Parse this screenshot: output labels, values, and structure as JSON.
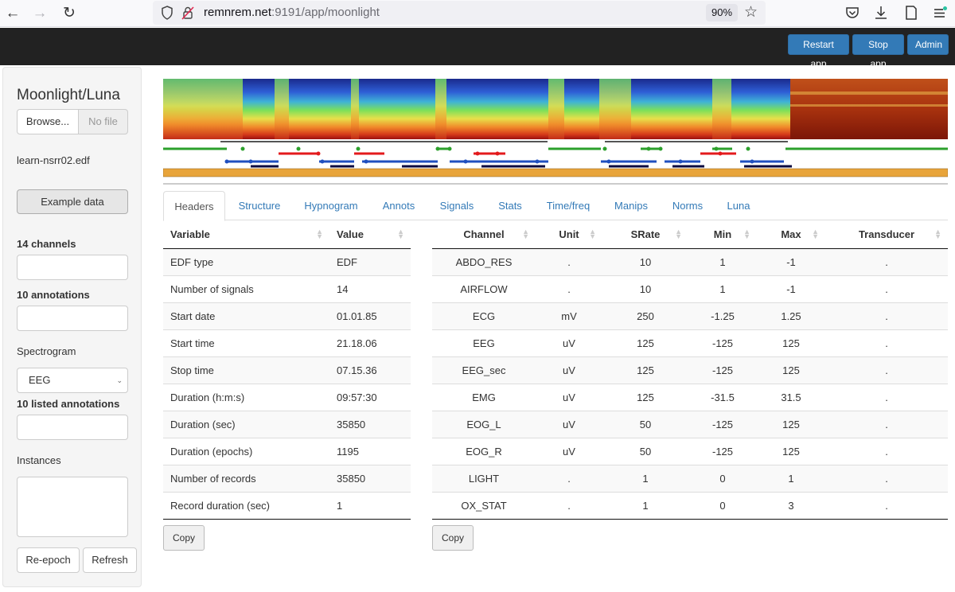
{
  "browser": {
    "url_host": "remnrem.net",
    "url_path": ":9191/app/moonlight",
    "zoom": "90%"
  },
  "navbar": {
    "restart_label": "Restart app",
    "stop_label": "Stop app",
    "admin_label": "Admin",
    "button_color": "#337ab7"
  },
  "sidebar": {
    "title": "Moonlight/Luna",
    "browse_label": "Browse...",
    "file_placeholder": "No file",
    "filename": "learn-nsrr02.edf",
    "example_label": "Example data",
    "channels_label": "14 channels",
    "annotations_label": "10 annotations",
    "spectrogram_label": "Spectrogram",
    "spectrogram_value": "EEG",
    "listed_annotations_label": "10 listed annotations",
    "instances_label": "Instances",
    "reepoch_label": "Re-epoch",
    "refresh_label": "Refresh"
  },
  "tabs": [
    "Headers",
    "Structure",
    "Hypnogram",
    "Annots",
    "Signals",
    "Stats",
    "Time/freq",
    "Manips",
    "Norms",
    "Luna"
  ],
  "active_tab": "Headers",
  "headers_table": {
    "columns": [
      "Variable",
      "Value"
    ],
    "rows": [
      [
        "EDF type",
        "EDF"
      ],
      [
        "Number of signals",
        "14"
      ],
      [
        "Start date",
        "01.01.85"
      ],
      [
        "Start time",
        "21.18.06"
      ],
      [
        "Stop time",
        "07.15.36"
      ],
      [
        "Duration (h:m:s)",
        "09:57:30"
      ],
      [
        "Duration (sec)",
        "35850"
      ],
      [
        "Duration (epochs)",
        "1195"
      ],
      [
        "Number of records",
        "35850"
      ],
      [
        "Record duration (sec)",
        "1"
      ]
    ],
    "copy_label": "Copy"
  },
  "channels_table": {
    "columns": [
      "Channel",
      "Unit",
      "SRate",
      "Min",
      "Max",
      "Transducer"
    ],
    "rows": [
      [
        "ABDO_RES",
        ".",
        "10",
        "1",
        "-1",
        "."
      ],
      [
        "AIRFLOW",
        ".",
        "10",
        "1",
        "-1",
        "."
      ],
      [
        "ECG",
        "mV",
        "250",
        "-1.25",
        "1.25",
        "."
      ],
      [
        "EEG",
        "uV",
        "125",
        "-125",
        "125",
        "."
      ],
      [
        "EEG_sec",
        "uV",
        "125",
        "-125",
        "125",
        "."
      ],
      [
        "EMG",
        "uV",
        "125",
        "-31.5",
        "31.5",
        "."
      ],
      [
        "EOG_L",
        "uV",
        "50",
        "-125",
        "125",
        "."
      ],
      [
        "EOG_R",
        "uV",
        "50",
        "-125",
        "125",
        "."
      ],
      [
        "LIGHT",
        ".",
        "1",
        "0",
        "1",
        "."
      ],
      [
        "OX_STAT",
        ".",
        "1",
        "0",
        "3",
        "."
      ]
    ],
    "copy_label": "Copy"
  },
  "colors": {
    "wake": "#2ca02c",
    "rem": "#e31a1c",
    "nrem": "#1f4fbf",
    "deep": "#0a0a40",
    "epoch_bar": "#e8a43a"
  }
}
